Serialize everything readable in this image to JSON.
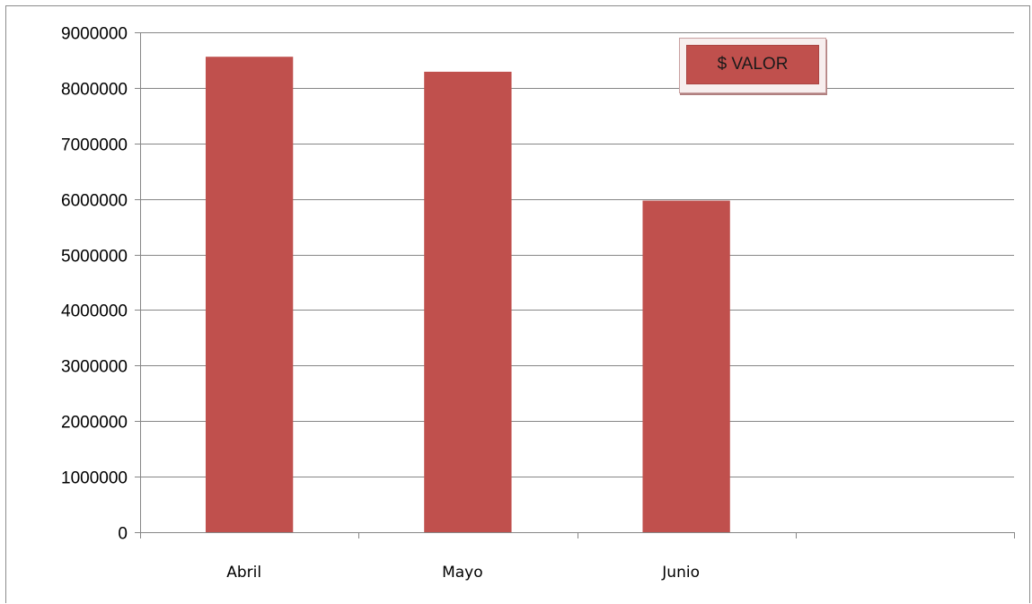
{
  "chart_data": {
    "type": "bar",
    "categories": [
      "Abril",
      "Mayo",
      "Junio",
      ""
    ],
    "series": [
      {
        "name": "$ VALOR",
        "values": [
          8560000,
          8290000,
          5970000,
          null
        ],
        "color": "#c0504d"
      }
    ],
    "title": "",
    "xlabel": "",
    "ylabel": "",
    "ylim": [
      0,
      9000000
    ],
    "yticks": [
      0,
      1000000,
      2000000,
      3000000,
      4000000,
      5000000,
      6000000,
      7000000,
      8000000,
      9000000
    ],
    "ytick_labels": [
      "0",
      "1000000",
      "2000000",
      "3000000",
      "4000000",
      "5000000",
      "6000000",
      "7000000",
      "8000000",
      "9000000"
    ],
    "grid": true,
    "legend": {
      "label": "$ VALOR",
      "placement": "top-right"
    }
  }
}
